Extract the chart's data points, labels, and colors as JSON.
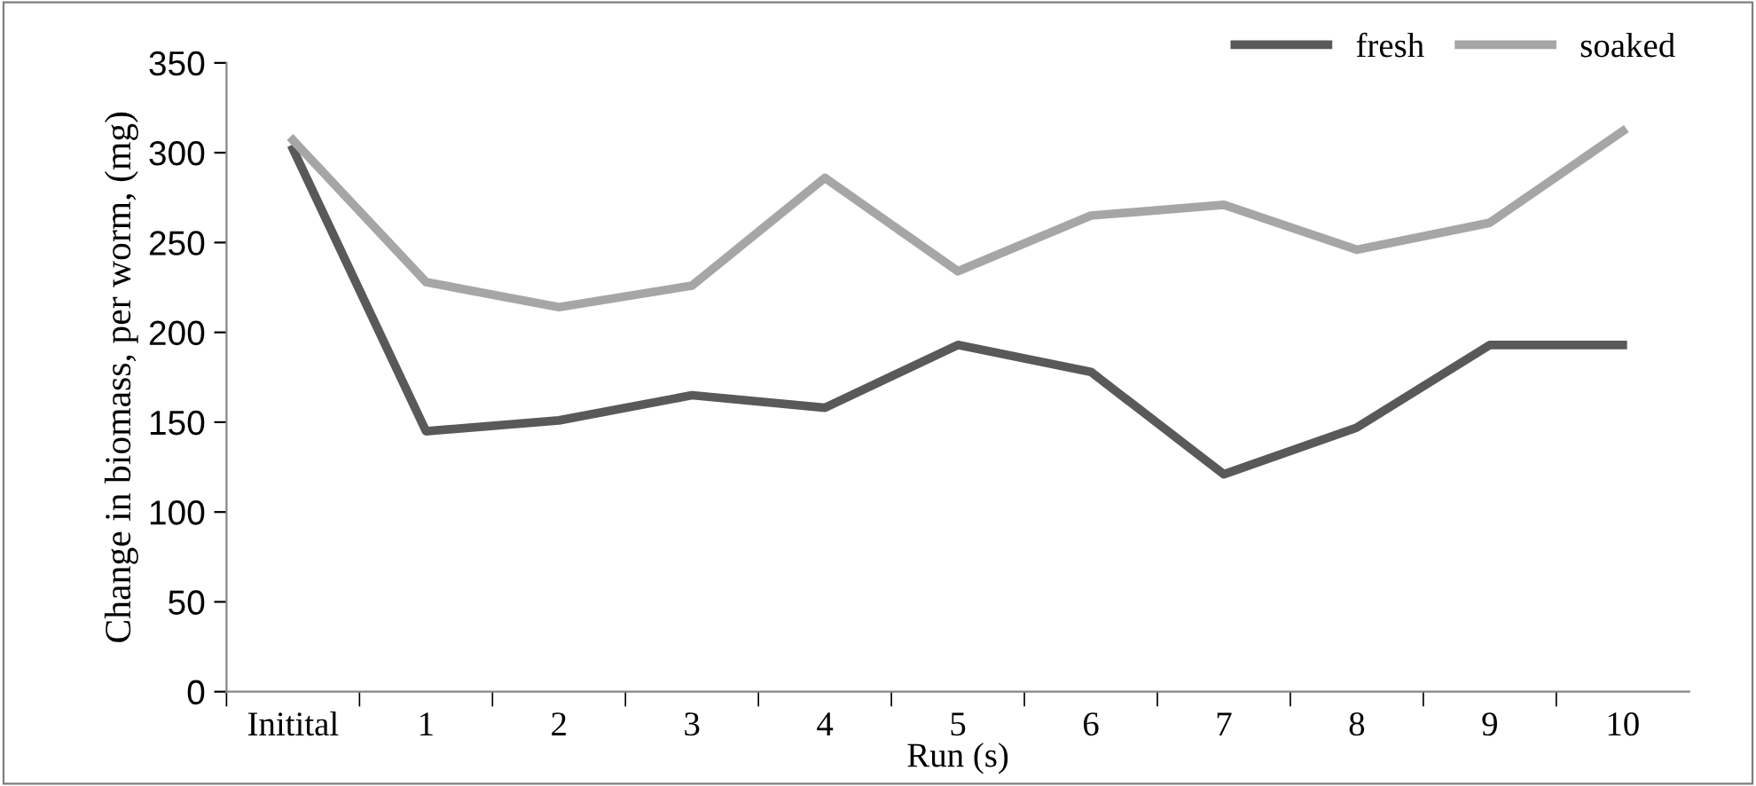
{
  "chart_data": {
    "type": "line",
    "xlabel": "Run (s)",
    "ylabel": "Change in biomass, per worm, (mg)",
    "categories": [
      "Initital",
      "1",
      "2",
      "3",
      "4",
      "5",
      "6",
      "7",
      "8",
      "9",
      "10"
    ],
    "series": [
      {
        "name": "fresh",
        "color": "#595959",
        "values": [
          302,
          145,
          151,
          165,
          158,
          193,
          178,
          121,
          147,
          193,
          193
        ]
      },
      {
        "name": "soaked",
        "color": "#a6a6a6",
        "values": [
          307,
          228,
          214,
          226,
          286,
          234,
          265,
          271,
          246,
          261,
          312
        ]
      }
    ],
    "ylim": [
      0,
      350
    ],
    "yticks": [
      0,
      50,
      100,
      150,
      200,
      250,
      300,
      350
    ],
    "grid": false,
    "legend": "top right",
    "marker": "none",
    "line_style": "solid"
  }
}
